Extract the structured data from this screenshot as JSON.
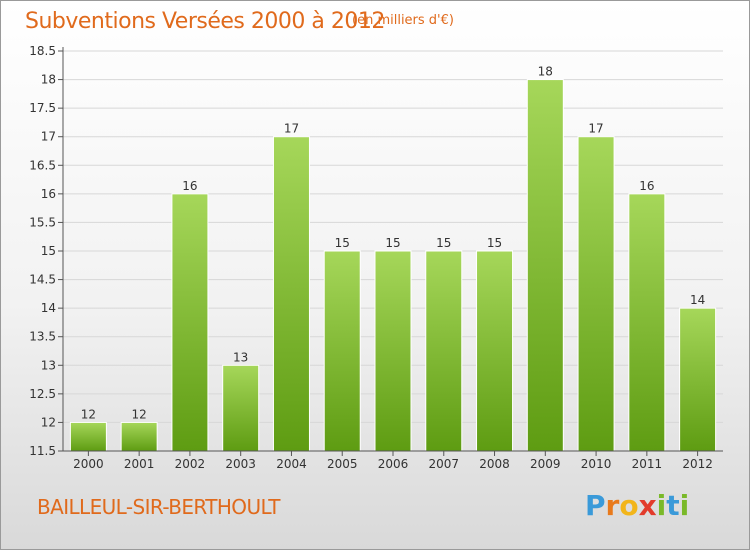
{
  "header": {
    "title": "Subventions Versées 2000 à 2012",
    "subtitle": "(en milliers d'€)"
  },
  "footer": {
    "place": "BAILLEUL-SIR-BERTHOULT",
    "logo_letters": [
      "P",
      "r",
      "o",
      "x",
      "i",
      "t",
      "i"
    ],
    "logo_colors": [
      "#3a9ad9",
      "#e87a1c",
      "#f2b51a",
      "#e23b2b",
      "#7ab929",
      "#3a9ad9",
      "#7ab929"
    ]
  },
  "colors": {
    "bar_top": "#a6d75a",
    "bar_bottom": "#5e9c12",
    "axis": "#555555",
    "grid": "#d7d7d7"
  },
  "chart_data": {
    "type": "bar",
    "title": "Subventions Versées 2000 à 2012",
    "subtitle": "(en milliers d'€)",
    "categories": [
      "2000",
      "2001",
      "2002",
      "2003",
      "2004",
      "2005",
      "2006",
      "2007",
      "2008",
      "2009",
      "2010",
      "2011",
      "2012"
    ],
    "values": [
      12,
      12,
      16,
      13,
      17,
      15,
      15,
      15,
      15,
      18,
      17,
      16,
      14
    ],
    "value_labels": [
      "12",
      "12",
      "16",
      "13",
      "17",
      "15",
      "15",
      "15",
      "15",
      "18",
      "17",
      "16",
      "14"
    ],
    "ylim": [
      11.5,
      18.5
    ],
    "yticks": [
      11.5,
      12,
      12.5,
      13,
      13.5,
      14,
      14.5,
      15,
      15.5,
      16,
      16.5,
      17,
      17.5,
      18,
      18.5
    ],
    "ytick_labels": [
      "11.5",
      "12",
      "12.5",
      "13",
      "13.5",
      "14",
      "14.5",
      "15",
      "15.5",
      "16",
      "16.5",
      "17",
      "17.5",
      "18",
      "18.5"
    ],
    "grid": true,
    "legend": "none"
  }
}
